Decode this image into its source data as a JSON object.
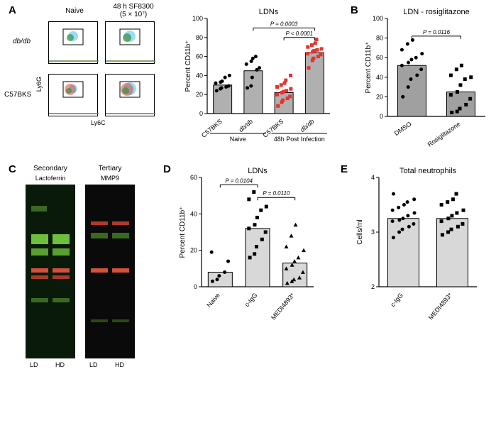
{
  "panelA": {
    "label": "A",
    "facs": {
      "col_headers": [
        "Naive",
        "48 h SF8300\n(5 × 10⁷)"
      ],
      "row_headers": [
        "db/db",
        "C57BKS"
      ],
      "y_axis": "Ly6G",
      "x_axis": "Ly6C"
    },
    "barchart": {
      "title": "LDNs",
      "ylabel": "Percent CD11b⁺",
      "ylim": [
        0,
        100
      ],
      "ytick_step": 20,
      "groups": [
        "C57BKS",
        "db/db",
        "C57BKS",
        "db/db"
      ],
      "group_labels": [
        "Naive",
        "48h Post Infection"
      ],
      "bars": [
        {
          "x": 0,
          "height": 30,
          "color": "#b0b0b0",
          "dots": [
            24,
            26,
            27,
            28,
            29,
            32,
            33,
            34,
            38,
            40
          ],
          "dot_color": "#000000"
        },
        {
          "x": 1,
          "height": 45,
          "color": "#b0b0b0",
          "dots": [
            27,
            29,
            38,
            46,
            48,
            52,
            55,
            58,
            60
          ],
          "dot_color": "#000000"
        },
        {
          "x": 2,
          "height": 22,
          "color": "#b0b0b0",
          "dots": [
            8,
            12,
            14,
            16,
            18,
            20,
            22,
            23,
            24,
            26,
            28,
            30,
            32,
            35,
            40
          ],
          "dot_color": "#e8322b",
          "dot_shape": "square"
        },
        {
          "x": 3,
          "height": 64,
          "color": "#b0b0b0",
          "dots": [
            48,
            56,
            58,
            60,
            62,
            63,
            65,
            66,
            67,
            68,
            70,
            72,
            74,
            78
          ],
          "dot_color": "#e8322b",
          "dot_shape": "square"
        }
      ],
      "pvalues": [
        {
          "from": 1,
          "to": 3,
          "text": "P = 0.0003",
          "y": 90
        },
        {
          "from": 2,
          "to": 3,
          "text": "P < 0.0001",
          "y": 80
        }
      ]
    }
  },
  "panelB": {
    "label": "B",
    "barchart": {
      "title": "LDN - rosiglitazone",
      "ylabel": "Percent CD11b⁺",
      "ylim": [
        0,
        100
      ],
      "ytick_step": 20,
      "categories": [
        "DMSO",
        "Rosiglitazone"
      ],
      "bars": [
        {
          "x": 0,
          "height": 52,
          "color": "#a0a0a0",
          "dots": [
            20,
            30,
            38,
            42,
            48,
            52,
            55,
            58,
            60,
            64,
            68,
            74,
            78
          ],
          "dot_color": "#000000"
        },
        {
          "x": 1,
          "height": 25,
          "color": "#a0a0a0",
          "dots": [
            4,
            5,
            8,
            12,
            18,
            22,
            25,
            32,
            38,
            40,
            42,
            48,
            52
          ],
          "dot_color": "#000000",
          "dot_shape": "square"
        }
      ],
      "pvalue": {
        "text": "P = 0.0116",
        "y": 82
      }
    }
  },
  "panelC": {
    "label": "C",
    "headers": [
      "Secondary",
      "Tertiary"
    ],
    "targets": [
      "Lactoferrin",
      "MMP9"
    ],
    "lanes": [
      "LD",
      "HD"
    ]
  },
  "panelD": {
    "label": "D",
    "barchart": {
      "title": "LDNs",
      "ylabel": "Percent CD11b⁺",
      "ylim": [
        0,
        60
      ],
      "ytick_step": 20,
      "categories": [
        "Naive",
        "c-IgG",
        "MEDI4893*"
      ],
      "bars": [
        {
          "x": 0,
          "height": 8,
          "color": "#d8d8d8",
          "dots": [
            3,
            4,
            6,
            8,
            14,
            19
          ],
          "dot_color": "#000000"
        },
        {
          "x": 1,
          "height": 32,
          "color": "#d8d8d8",
          "dots": [
            16,
            18,
            22,
            26,
            30,
            32,
            34,
            38,
            42,
            44,
            48,
            52
          ],
          "dot_color": "#000000",
          "dot_shape": "square"
        },
        {
          "x": 2,
          "height": 13,
          "color": "#d8d8d8",
          "dots": [
            2,
            3,
            4,
            5,
            8,
            10,
            12,
            14,
            16,
            20,
            22,
            28,
            34
          ],
          "dot_color": "#000000",
          "dot_shape": "triangle"
        }
      ],
      "pvalues": [
        {
          "from": 0,
          "to": 1,
          "text": "P = 0.0104",
          "y": 56
        },
        {
          "from": 1,
          "to": 2,
          "text": "P = 0.0110",
          "y": 49
        }
      ]
    }
  },
  "panelE": {
    "label": "E",
    "barchart": {
      "title": "Total neutrophils",
      "ylabel": "Cells/ml",
      "ylim": [
        2,
        4
      ],
      "ytick_step": 1,
      "categories": [
        "c-IgG",
        "MEDI4893*"
      ],
      "bars": [
        {
          "x": 0,
          "height": 3.25,
          "color": "#d8d8d8",
          "dots": [
            2.9,
            3.0,
            3.05,
            3.1,
            3.15,
            3.2,
            3.22,
            3.25,
            3.3,
            3.35,
            3.4,
            3.45,
            3.5,
            3.55,
            3.6,
            3.7
          ],
          "dot_color": "#000000"
        },
        {
          "x": 1,
          "height": 3.25,
          "color": "#d8d8d8",
          "dots": [
            2.95,
            3.0,
            3.05,
            3.1,
            3.15,
            3.2,
            3.25,
            3.3,
            3.35,
            3.4,
            3.5,
            3.55,
            3.6,
            3.7
          ],
          "dot_color": "#000000",
          "dot_shape": "square"
        }
      ]
    }
  }
}
